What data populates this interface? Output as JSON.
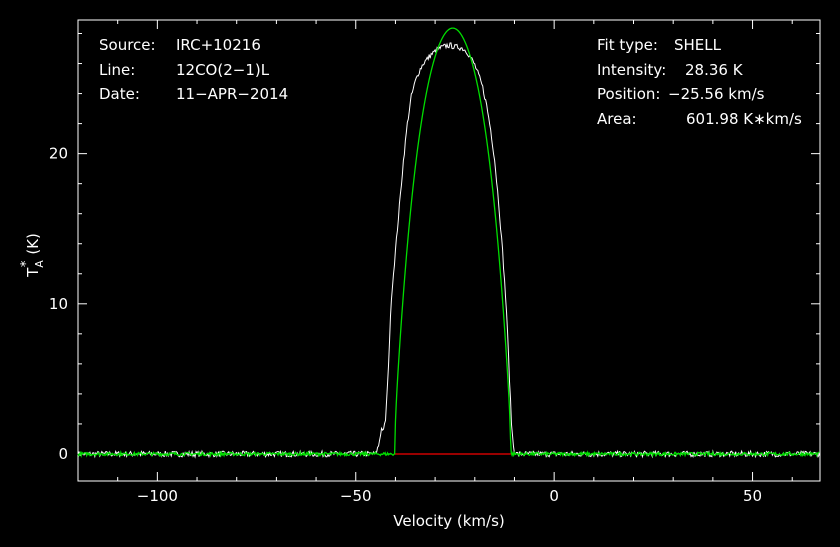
{
  "chart_data": {
    "type": "line",
    "xlabel": "Velocity (km/s)",
    "ylabel_main": "T",
    "ylabel_sup": "*",
    "ylabel_sub": "A",
    "ylabel_unit": "(K)",
    "xlim": [
      -120,
      67
    ],
    "ylim": [
      -1.8,
      28.9
    ],
    "x_ticks": [
      -100,
      -50,
      0,
      50
    ],
    "x_tick_labels": [
      "−100",
      "−50",
      "0",
      "50"
    ],
    "y_ticks": [
      0,
      10,
      20
    ],
    "y_tick_labels": [
      "0",
      "10",
      "20"
    ],
    "grid": false,
    "colors": {
      "background": "#000000",
      "axes": "#ffffff",
      "spectrum": "#ffffff",
      "fit": "#00dd00",
      "baseline_window": "#cc0000"
    },
    "info_left": [
      {
        "key": "Source:",
        "value": "IRC+10216"
      },
      {
        "key": "Line:",
        "value": "12CO(2−1)L"
      },
      {
        "key": "Date:",
        "value": "11−APR−2014"
      }
    ],
    "info_right": [
      {
        "key": "Fit type:",
        "value": "SHELL"
      },
      {
        "key": "Intensity:",
        "value": "28.36 K"
      },
      {
        "key": "Position:",
        "value": "−25.56 km/s"
      },
      {
        "key": "Area:",
        "value": "601.98 K∗km/s"
      }
    ],
    "fit": {
      "center": -25.56,
      "half_width": 14.6,
      "peak": 28.36
    },
    "baseline_window": [
      -40.2,
      -10.9
    ],
    "series": [
      {
        "kind": "spectrum",
        "points": [
          [
            -120,
            0
          ],
          [
            -45,
            0
          ],
          [
            -44.2,
            0.6
          ],
          [
            -43.8,
            1.3
          ],
          [
            -43.4,
            1.8
          ],
          [
            -43,
            1.5
          ],
          [
            -42.5,
            2.3
          ],
          [
            -42,
            4.5
          ],
          [
            -41.5,
            7.5
          ],
          [
            -41,
            10.5
          ],
          [
            -40,
            13.5
          ],
          [
            -39,
            16.5
          ],
          [
            -38,
            19.5
          ],
          [
            -37,
            22
          ],
          [
            -36,
            23.8
          ],
          [
            -35,
            24.8
          ],
          [
            -34,
            25.5
          ],
          [
            -33,
            26
          ],
          [
            -32,
            26.3
          ],
          [
            -31,
            26.6
          ],
          [
            -30,
            26.8
          ],
          [
            -29,
            27
          ],
          [
            -28,
            27.1
          ],
          [
            -27,
            27.2
          ],
          [
            -26,
            27.2
          ],
          [
            -25,
            27.1
          ],
          [
            -24,
            27.1
          ],
          [
            -23,
            27
          ],
          [
            -22,
            26.8
          ],
          [
            -21,
            26.4
          ],
          [
            -20,
            25.9
          ],
          [
            -19,
            25.2
          ],
          [
            -18,
            24.4
          ],
          [
            -17,
            23.2
          ],
          [
            -16,
            21.6
          ],
          [
            -15,
            19.6
          ],
          [
            -14,
            16.8
          ],
          [
            -13,
            13.5
          ],
          [
            -12,
            9.5
          ],
          [
            -11.5,
            6.5
          ],
          [
            -11,
            3.5
          ],
          [
            -10.7,
            1.8
          ],
          [
            -10.3,
            0.6
          ],
          [
            -10,
            0.2
          ],
          [
            -9.5,
            0
          ],
          [
            67,
            0
          ]
        ]
      }
    ]
  }
}
